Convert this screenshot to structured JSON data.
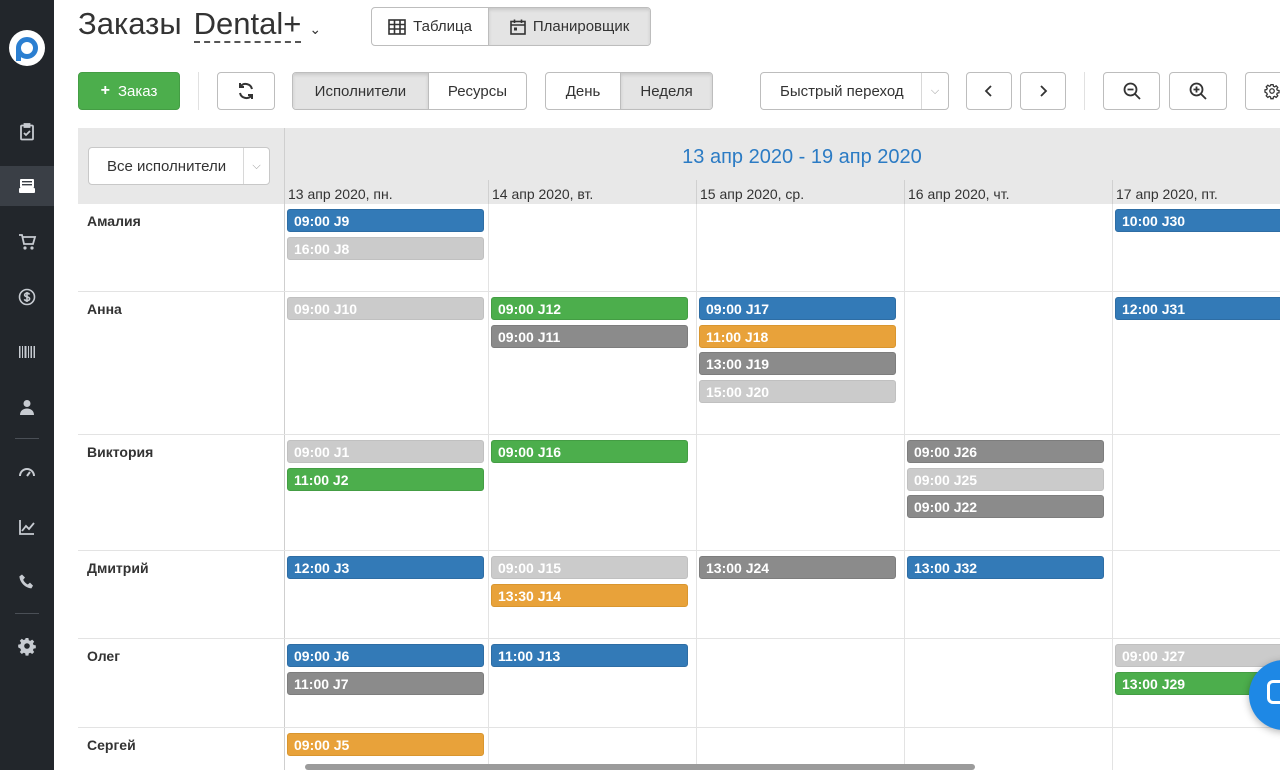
{
  "header": {
    "title": "Заказы",
    "company": "Dental+",
    "view_tabs": [
      {
        "label": "Таблица",
        "active": false
      },
      {
        "label": "Планировщик",
        "active": true
      }
    ]
  },
  "toolbar": {
    "add_order_label": "Заказ",
    "mode_tabs": [
      {
        "label": "Исполнители",
        "active": true
      },
      {
        "label": "Ресурсы",
        "active": false
      }
    ],
    "period_tabs": [
      {
        "label": "День",
        "active": false
      },
      {
        "label": "Неделя",
        "active": true
      }
    ],
    "quick_jump_label": "Быстрый переход"
  },
  "sidebar": {
    "items": [
      {
        "icon": "clipboard-check-icon"
      },
      {
        "icon": "orders-tray-icon",
        "active": true
      },
      {
        "icon": "cart-icon"
      },
      {
        "icon": "dollar-icon"
      },
      {
        "icon": "barcode-icon"
      },
      {
        "icon": "user-icon"
      },
      {
        "icon": "speedometer-icon"
      },
      {
        "icon": "line-chart-icon"
      },
      {
        "icon": "phone-icon"
      },
      {
        "icon": "gear-icon"
      }
    ]
  },
  "scheduler": {
    "filter_label": "Все исполнители",
    "date_range": "13 апр 2020 - 19 апр 2020",
    "days": [
      "13 апр 2020, пн.",
      "14 апр 2020, вт.",
      "15 апр 2020, ср.",
      "16 апр 2020, чт.",
      "17 апр 2020, пт."
    ],
    "rows": [
      {
        "name": "Амалия",
        "events": [
          {
            "day": 0,
            "label": "09:00 J9",
            "color": "blue"
          },
          {
            "day": 0,
            "label": "16:00 J8",
            "color": "light"
          },
          {
            "day": 4,
            "label": "10:00 J30",
            "color": "blue"
          }
        ]
      },
      {
        "name": "Анна",
        "events": [
          {
            "day": 0,
            "label": "09:00 J10",
            "color": "light"
          },
          {
            "day": 1,
            "label": "09:00 J12",
            "color": "green"
          },
          {
            "day": 1,
            "label": "09:00 J11",
            "color": "gray"
          },
          {
            "day": 2,
            "label": "09:00 J17",
            "color": "blue"
          },
          {
            "day": 2,
            "label": "11:00 J18",
            "color": "orange"
          },
          {
            "day": 2,
            "label": "13:00 J19",
            "color": "gray"
          },
          {
            "day": 2,
            "label": "15:00 J20",
            "color": "light"
          },
          {
            "day": 4,
            "label": "12:00 J31",
            "color": "blue"
          }
        ]
      },
      {
        "name": "Виктория",
        "events": [
          {
            "day": 0,
            "label": "09:00 J1",
            "color": "light"
          },
          {
            "day": 0,
            "label": "11:00 J2",
            "color": "green"
          },
          {
            "day": 1,
            "label": "09:00 J16",
            "color": "green"
          },
          {
            "day": 3,
            "label": "09:00 J26",
            "color": "gray"
          },
          {
            "day": 3,
            "label": "09:00 J25",
            "color": "light"
          },
          {
            "day": 3,
            "label": "09:00 J22",
            "color": "gray"
          }
        ]
      },
      {
        "name": "Дмитрий",
        "events": [
          {
            "day": 0,
            "label": "12:00 J3",
            "color": "blue"
          },
          {
            "day": 1,
            "label": "09:00 J15",
            "color": "light"
          },
          {
            "day": 1,
            "label": "13:30 J14",
            "color": "orange"
          },
          {
            "day": 2,
            "label": "13:00 J24",
            "color": "gray"
          },
          {
            "day": 3,
            "label": "13:00 J32",
            "color": "blue"
          }
        ]
      },
      {
        "name": "Олег",
        "events": [
          {
            "day": 0,
            "label": "09:00 J6",
            "color": "blue"
          },
          {
            "day": 0,
            "label": "11:00 J7",
            "color": "gray"
          },
          {
            "day": 1,
            "label": "11:00 J13",
            "color": "blue"
          },
          {
            "day": 4,
            "label": "09:00 J27",
            "color": "light"
          },
          {
            "day": 4,
            "label": "13:00 J29",
            "color": "green"
          }
        ]
      },
      {
        "name": "Сергей",
        "events": [
          {
            "day": 0,
            "label": "09:00 J5",
            "color": "orange"
          }
        ]
      }
    ]
  },
  "colors": {
    "blue": "#337ab7",
    "green": "#4cae4c",
    "orange": "#e8a23a",
    "gray": "#8b8b8b",
    "light": "#cbcbcb",
    "accent_text": "#2b7bc4"
  }
}
